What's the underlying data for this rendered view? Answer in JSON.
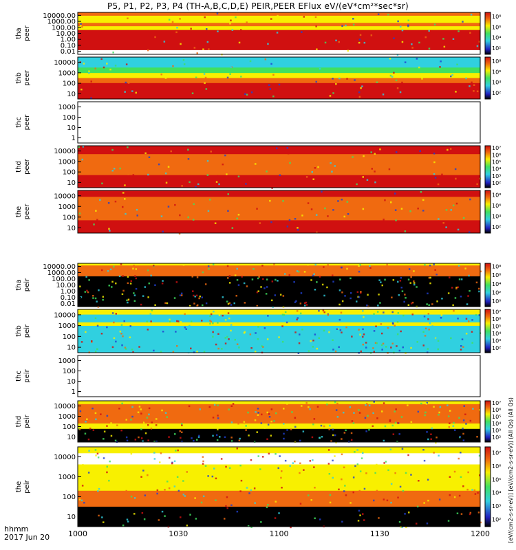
{
  "title": "P5, P1, P2, P3, P4 (TH-A,B,C,D,E) PEIR,PEER EFlux eV/(eV*cm²*sec*sr)",
  "colors": {
    "black": "#000000",
    "red": "#d01010",
    "orange": "#f06a10",
    "yellow": "#f8f000",
    "green": "#40e060",
    "cyan": "#30d0e0",
    "blue": "#2040d0",
    "white": "#ffffff"
  },
  "footer": {
    "label1": "hhmm",
    "label2": "2017 Jun 20",
    "rotated_label": "[eV/(cm2-s-sr-eV)] [eV/(cm2-s-sr-eV)] (All Qs) (All Qs)"
  },
  "chart_data": {
    "type": "heatmap",
    "x_axis": {
      "range": [
        "1000",
        "1200"
      ],
      "ticks": [
        "1000",
        "1030",
        "1100",
        "1130",
        "1200"
      ],
      "minor_ticks_per_major": 6
    },
    "panels": [
      {
        "id": "tha-peer",
        "probe": "tha",
        "species": "peer",
        "log_ticks": [
          "10000.00",
          "1000.00",
          "100.00",
          "10.00",
          "1.00",
          "0.10",
          "0.01"
        ],
        "colorbar_labels": [
          "10⁸",
          "10⁶",
          "10⁴",
          "10²"
        ],
        "has_data": true,
        "style": "tha-peer"
      },
      {
        "id": "thb-peer",
        "probe": "thb",
        "species": "peer",
        "log_ticks": [
          "10000",
          "1000",
          "100",
          "10"
        ],
        "colorbar_labels": [
          "10⁸",
          "10⁶",
          "10⁴",
          "10²"
        ],
        "has_data": true,
        "style": "thb-peer"
      },
      {
        "id": "thc-peer",
        "probe": "thc",
        "species": "peer",
        "log_ticks": [
          "1000",
          "100",
          "10",
          "1"
        ],
        "colorbar_labels": [],
        "has_data": false,
        "style": "empty"
      },
      {
        "id": "thd-peer",
        "probe": "thd",
        "species": "peer",
        "log_ticks": [
          "10000",
          "1000",
          "100",
          "10"
        ],
        "colorbar_labels": [
          "10⁷",
          "10⁶",
          "10⁵",
          "10⁴",
          "10³",
          "10²"
        ],
        "has_data": true,
        "style": "thd-peer"
      },
      {
        "id": "the-peer",
        "probe": "the",
        "species": "peer",
        "log_ticks": [
          "10000",
          "1000",
          "100",
          "10"
        ],
        "colorbar_labels": [
          "10⁸",
          "10⁶",
          "10⁴",
          "10²"
        ],
        "has_data": true,
        "style": "the-peer"
      },
      {
        "id": "tha-peir",
        "probe": "tha",
        "species": "peir",
        "log_ticks": [
          "10000.00",
          "1000.00",
          "100.00",
          "10.00",
          "1.00",
          "0.10",
          "0.01"
        ],
        "colorbar_labels": [
          "10⁸",
          "10⁶",
          "10⁴",
          "10²",
          "10⁰"
        ],
        "has_data": true,
        "style": "tha-peir"
      },
      {
        "id": "thb-peir",
        "probe": "thb",
        "species": "peir",
        "log_ticks": [
          "10000",
          "1000",
          "100",
          "10"
        ],
        "colorbar_labels": [
          "10⁷",
          "10⁶",
          "10⁵",
          "10⁴",
          "10³",
          "10²"
        ],
        "has_data": true,
        "style": "thb-peir"
      },
      {
        "id": "thc-peir",
        "probe": "thc",
        "species": "peir",
        "log_ticks": [
          "1000",
          "100",
          "10",
          "1"
        ],
        "colorbar_labels": [],
        "has_data": false,
        "style": "empty"
      },
      {
        "id": "thd-peir",
        "probe": "thd",
        "species": "peir",
        "log_ticks": [
          "10000",
          "1000",
          "100",
          "10"
        ],
        "colorbar_labels": [
          "10⁷",
          "10⁶",
          "10⁵",
          "10⁴",
          "10³",
          "10²"
        ],
        "has_data": true,
        "style": "thd-peir"
      },
      {
        "id": "the-peir",
        "probe": "the",
        "species": "peir",
        "log_ticks": [
          "10000",
          "1000",
          "100",
          "10"
        ],
        "colorbar_labels": [
          "10⁷",
          "10⁶",
          "10⁵",
          "10⁴",
          "10³",
          "10²"
        ],
        "has_data": true,
        "style": "the-peir"
      }
    ]
  }
}
